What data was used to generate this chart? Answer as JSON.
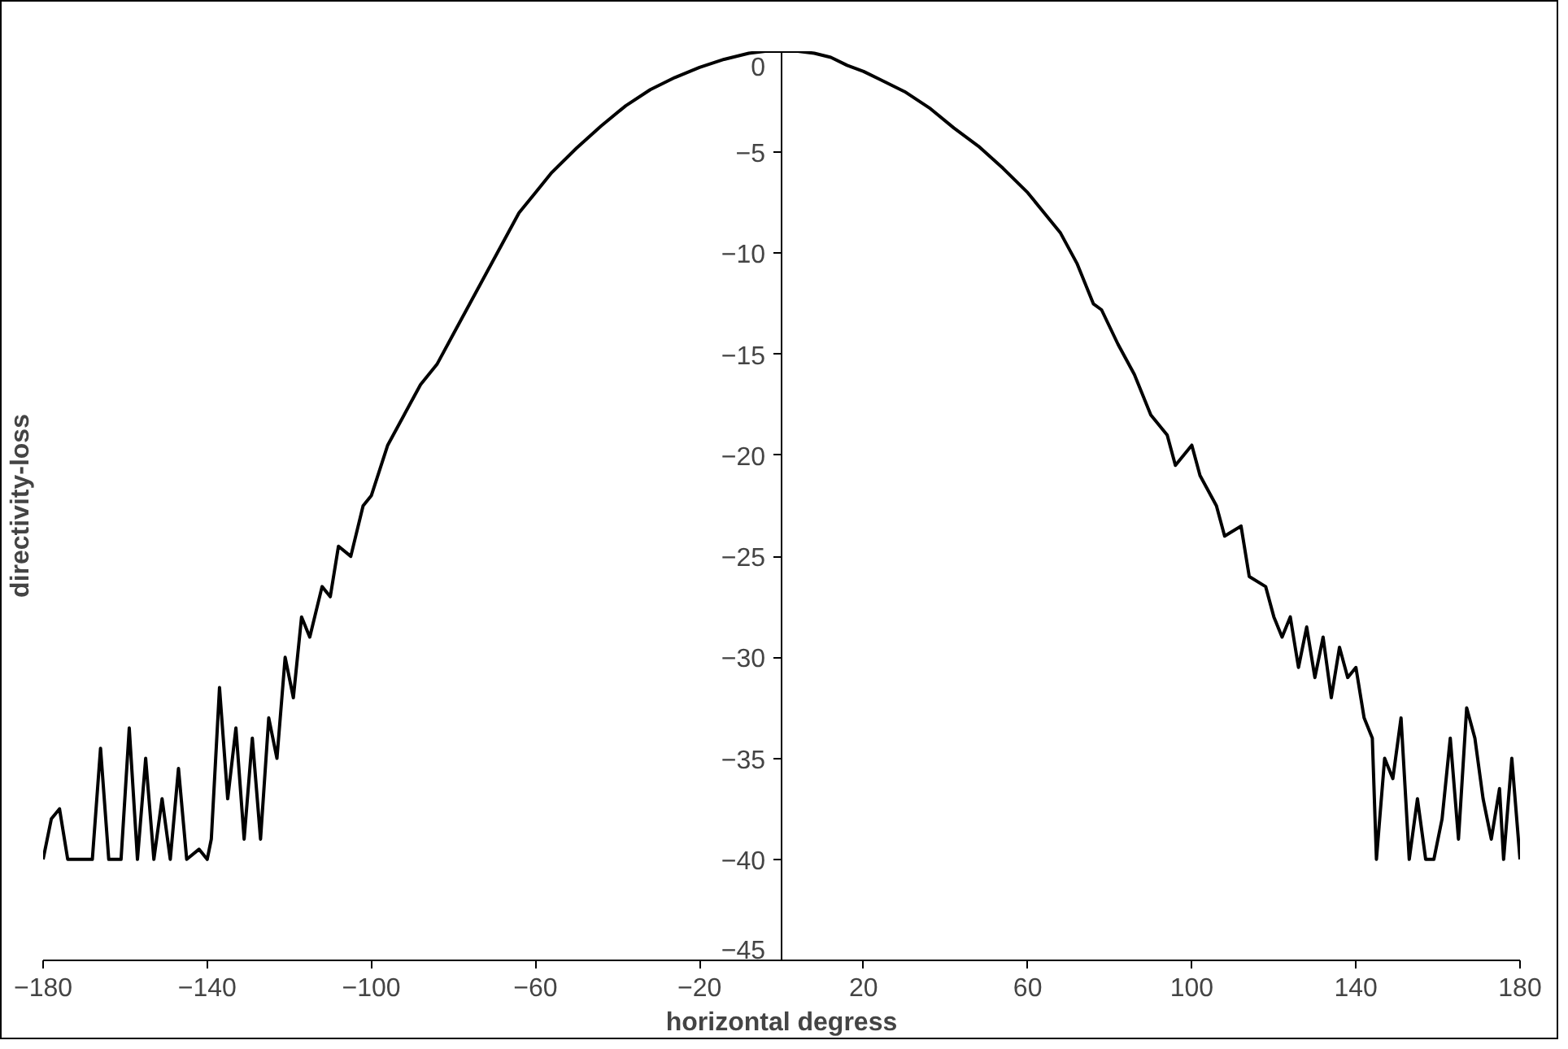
{
  "chart_data": {
    "type": "line",
    "xlabel": "horizontal degress",
    "ylabel": "directivity-loss",
    "x": [
      -180,
      -178,
      -176,
      -174,
      -168,
      -166,
      -164,
      -161,
      -159,
      -157,
      -155,
      -153,
      -151,
      -149,
      -147,
      -145,
      -142,
      -140,
      -139,
      -137,
      -135,
      -133,
      -131,
      -129,
      -127,
      -125,
      -123,
      -121,
      -119,
      -117,
      -115,
      -112,
      -110,
      -108,
      -105,
      -102,
      -100,
      -96,
      -92,
      -88,
      -84,
      -80,
      -76,
      -72,
      -68,
      -64,
      -60,
      -56,
      -50,
      -44,
      -38,
      -32,
      -26,
      -20,
      -14,
      -8,
      -4,
      0,
      4,
      8,
      12,
      16,
      20,
      24,
      30,
      36,
      42,
      48,
      54,
      60,
      64,
      68,
      72,
      76,
      78,
      82,
      86,
      90,
      94,
      96,
      100,
      102,
      106,
      108,
      112,
      114,
      118,
      120,
      122,
      124,
      126,
      128,
      130,
      132,
      134,
      136,
      138,
      140,
      142,
      144,
      145,
      147,
      149,
      151,
      153,
      155,
      157,
      159,
      161,
      163,
      165,
      167,
      169,
      171,
      173,
      175,
      176,
      178,
      180
    ],
    "series": [
      {
        "color": "#000000",
        "values": [
          -40,
          -38,
          -37.5,
          -40,
          -40,
          -34.5,
          -40,
          -40,
          -33.5,
          -40,
          -35,
          -40,
          -37,
          -40,
          -35.5,
          -40,
          -39.5,
          -40,
          -39,
          -31.5,
          -37,
          -33.5,
          -39,
          -34,
          -39,
          -33,
          -35,
          -30,
          -32,
          -28,
          -29,
          -26.5,
          -27,
          -24.5,
          -25,
          -22.5,
          -22,
          -19.5,
          -18,
          -16.5,
          -15.5,
          -14,
          -12.5,
          -11,
          -9.5,
          -8,
          -7,
          -6,
          -4.8,
          -3.7,
          -2.7,
          -1.9,
          -1.3,
          -0.8,
          -0.4,
          -0.1,
          0,
          0,
          0,
          -0.1,
          -0.3,
          -0.7,
          -1,
          -1.4,
          -2,
          -2.8,
          -3.8,
          -4.7,
          -5.8,
          -7,
          -8,
          -9,
          -10.5,
          -12.5,
          -12.8,
          -14.5,
          -16,
          -18,
          -19,
          -20.5,
          -19.5,
          -21,
          -22.5,
          -24,
          -23.5,
          -26,
          -26.5,
          -28,
          -29,
          -28,
          -30.5,
          -28.5,
          -31,
          -29,
          -32,
          -29.5,
          -31,
          -30.5,
          -33,
          -34,
          -40,
          -35,
          -36,
          -33,
          -40,
          -37,
          -40,
          -40,
          -38,
          -34,
          -39,
          -32.5,
          -34,
          -37,
          -39,
          -36.5,
          -40,
          -35,
          -40
        ]
      }
    ],
    "xlim": [
      -180,
      180
    ],
    "ylim": [
      -45,
      0
    ],
    "xticks": [
      -180,
      -140,
      -100,
      -60,
      -20,
      20,
      60,
      100,
      140,
      180
    ],
    "yticks": [
      -45,
      -40,
      -35,
      -30,
      -25,
      -20,
      -15,
      -10,
      -5,
      0
    ],
    "grid": false,
    "marker": "none",
    "line_style": "solid"
  }
}
